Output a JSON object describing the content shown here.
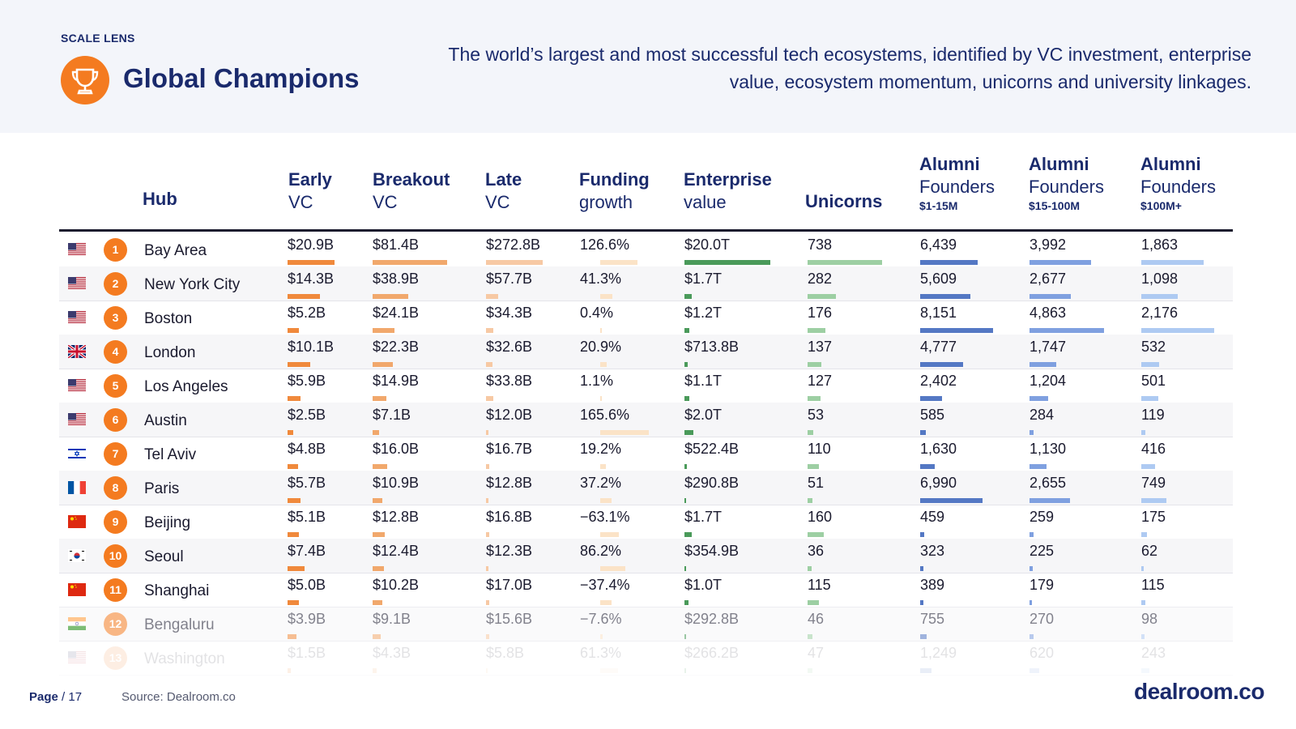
{
  "header": {
    "lens": "SCALE LENS",
    "title": "Global Champions",
    "description": "The world’s largest and most successful tech ecosystems, identified by VC investment, enterprise value, ecosystem momentum, unicorns and university linkages.",
    "icon": "trophy-icon"
  },
  "columns": {
    "hub": "Hub",
    "early": {
      "line1": "Early",
      "line2": "VC"
    },
    "breakout": {
      "line1": "Breakout",
      "line2": "VC"
    },
    "late": {
      "line1": "Late",
      "line2": "VC"
    },
    "funding": {
      "line1": "Funding",
      "line2": "growth"
    },
    "ev": {
      "line1": "Enterprise",
      "line2": "value"
    },
    "unicorns": "Unicorns",
    "alumni_small": {
      "line1": "Alumni",
      "line2": "Founders",
      "line3": "$1-15M"
    },
    "alumni_mid": {
      "line1": "Alumni",
      "line2": "Founders",
      "line3": "$15-100M"
    },
    "alumni_large": {
      "line1": "Alumni",
      "line2": "Founders",
      "line3": "$100M+"
    }
  },
  "colors": {
    "orange": "#f47b20",
    "early_bar": "#f0893c",
    "breakout_bar": "#f1a86c",
    "late_bar": "#f7c9a4",
    "funding_bar": "#fbe3c7",
    "ev_bar": "#4a9a5a",
    "unicorn_bar": "#9dcfa3",
    "alumni_small_bar": "#5478c4",
    "alumni_mid_bar": "#7fa0e0",
    "alumni_large_bar": "#aecaf2",
    "navy": "#1a2a6c"
  },
  "rows": [
    {
      "rank": "1",
      "flag": "us",
      "hub": "Bay Area",
      "early": "$20.9B",
      "early_v": 20.9,
      "breakout": "$81.4B",
      "breakout_v": 81.4,
      "late": "$272.8B",
      "late_v": 272.8,
      "funding": "126.6%",
      "funding_v": 126.6,
      "ev": "$20.0T",
      "ev_v": 20.0,
      "unicorns": "738",
      "unicorns_v": 738,
      "a1": "6,439",
      "a1_v": 6439,
      "a2": "3,992",
      "a2_v": 3992,
      "a3": "1,863",
      "a3_v": 1863
    },
    {
      "rank": "2",
      "flag": "us",
      "hub": "New York City",
      "early": "$14.3B",
      "early_v": 14.3,
      "breakout": "$38.9B",
      "breakout_v": 38.9,
      "late": "$57.7B",
      "late_v": 57.7,
      "funding": "41.3%",
      "funding_v": 41.3,
      "ev": "$1.7T",
      "ev_v": 1.7,
      "unicorns": "282",
      "unicorns_v": 282,
      "a1": "5,609",
      "a1_v": 5609,
      "a2": "2,677",
      "a2_v": 2677,
      "a3": "1,098",
      "a3_v": 1098
    },
    {
      "rank": "3",
      "flag": "us",
      "hub": "Boston",
      "early": "$5.2B",
      "early_v": 5.2,
      "breakout": "$24.1B",
      "breakout_v": 24.1,
      "late": "$34.3B",
      "late_v": 34.3,
      "funding": "0.4%",
      "funding_v": 0.4,
      "ev": "$1.2T",
      "ev_v": 1.2,
      "unicorns": "176",
      "unicorns_v": 176,
      "a1": "8,151",
      "a1_v": 8151,
      "a2": "4,863",
      "a2_v": 4863,
      "a3": "2,176",
      "a3_v": 2176
    },
    {
      "rank": "4",
      "flag": "gb",
      "hub": "London",
      "early": "$10.1B",
      "early_v": 10.1,
      "breakout": "$22.3B",
      "breakout_v": 22.3,
      "late": "$32.6B",
      "late_v": 32.6,
      "funding": "20.9%",
      "funding_v": 20.9,
      "ev": "$713.8B",
      "ev_v": 0.7138,
      "unicorns": "137",
      "unicorns_v": 137,
      "a1": "4,777",
      "a1_v": 4777,
      "a2": "1,747",
      "a2_v": 1747,
      "a3": "532",
      "a3_v": 532
    },
    {
      "rank": "5",
      "flag": "us",
      "hub": "Los Angeles",
      "early": "$5.9B",
      "early_v": 5.9,
      "breakout": "$14.9B",
      "breakout_v": 14.9,
      "late": "$33.8B",
      "late_v": 33.8,
      "funding": "1.1%",
      "funding_v": 1.1,
      "ev": "$1.1T",
      "ev_v": 1.1,
      "unicorns": "127",
      "unicorns_v": 127,
      "a1": "2,402",
      "a1_v": 2402,
      "a2": "1,204",
      "a2_v": 1204,
      "a3": "501",
      "a3_v": 501
    },
    {
      "rank": "6",
      "flag": "us",
      "hub": "Austin",
      "early": "$2.5B",
      "early_v": 2.5,
      "breakout": "$7.1B",
      "breakout_v": 7.1,
      "late": "$12.0B",
      "late_v": 12.0,
      "funding": "165.6%",
      "funding_v": 165.6,
      "ev": "$2.0T",
      "ev_v": 2.0,
      "unicorns": "53",
      "unicorns_v": 53,
      "a1": "585",
      "a1_v": 585,
      "a2": "284",
      "a2_v": 284,
      "a3": "119",
      "a3_v": 119
    },
    {
      "rank": "7",
      "flag": "il",
      "hub": "Tel Aviv",
      "early": "$4.8B",
      "early_v": 4.8,
      "breakout": "$16.0B",
      "breakout_v": 16.0,
      "late": "$16.7B",
      "late_v": 16.7,
      "funding": "19.2%",
      "funding_v": 19.2,
      "ev": "$522.4B",
      "ev_v": 0.5224,
      "unicorns": "110",
      "unicorns_v": 110,
      "a1": "1,630",
      "a1_v": 1630,
      "a2": "1,130",
      "a2_v": 1130,
      "a3": "416",
      "a3_v": 416
    },
    {
      "rank": "8",
      "flag": "fr",
      "hub": "Paris",
      "early": "$5.7B",
      "early_v": 5.7,
      "breakout": "$10.9B",
      "breakout_v": 10.9,
      "late": "$12.8B",
      "late_v": 12.8,
      "funding": "37.2%",
      "funding_v": 37.2,
      "ev": "$290.8B",
      "ev_v": 0.2908,
      "unicorns": "51",
      "unicorns_v": 51,
      "a1": "6,990",
      "a1_v": 6990,
      "a2": "2,655",
      "a2_v": 2655,
      "a3": "749",
      "a3_v": 749
    },
    {
      "rank": "9",
      "flag": "cn",
      "hub": "Beijing",
      "early": "$5.1B",
      "early_v": 5.1,
      "breakout": "$12.8B",
      "breakout_v": 12.8,
      "late": "$16.8B",
      "late_v": 16.8,
      "funding": "−63.1%",
      "funding_v": -63.1,
      "ev": "$1.7T",
      "ev_v": 1.7,
      "unicorns": "160",
      "unicorns_v": 160,
      "a1": "459",
      "a1_v": 459,
      "a2": "259",
      "a2_v": 259,
      "a3": "175",
      "a3_v": 175
    },
    {
      "rank": "10",
      "flag": "kr",
      "hub": "Seoul",
      "early": "$7.4B",
      "early_v": 7.4,
      "breakout": "$12.4B",
      "breakout_v": 12.4,
      "late": "$12.3B",
      "late_v": 12.3,
      "funding": "86.2%",
      "funding_v": 86.2,
      "ev": "$354.9B",
      "ev_v": 0.3549,
      "unicorns": "36",
      "unicorns_v": 36,
      "a1": "323",
      "a1_v": 323,
      "a2": "225",
      "a2_v": 225,
      "a3": "62",
      "a3_v": 62
    },
    {
      "rank": "11",
      "flag": "cn",
      "hub": "Shanghai",
      "early": "$5.0B",
      "early_v": 5.0,
      "breakout": "$10.2B",
      "breakout_v": 10.2,
      "late": "$17.0B",
      "late_v": 17.0,
      "funding": "−37.4%",
      "funding_v": -37.4,
      "ev": "$1.0T",
      "ev_v": 1.0,
      "unicorns": "115",
      "unicorns_v": 115,
      "a1": "389",
      "a1_v": 389,
      "a2": "179",
      "a2_v": 179,
      "a3": "115",
      "a3_v": 115
    },
    {
      "rank": "12",
      "flag": "in",
      "hub": "Bengaluru",
      "early": "$3.9B",
      "early_v": 3.9,
      "breakout": "$9.1B",
      "breakout_v": 9.1,
      "late": "$15.6B",
      "late_v": 15.6,
      "funding": "−7.6%",
      "funding_v": -7.6,
      "ev": "$292.8B",
      "ev_v": 0.2928,
      "unicorns": "46",
      "unicorns_v": 46,
      "a1": "755",
      "a1_v": 755,
      "a2": "270",
      "a2_v": 270,
      "a3": "98",
      "a3_v": 98
    },
    {
      "rank": "13",
      "flag": "us",
      "hub": "Washington",
      "early": "$1.5B",
      "early_v": 1.5,
      "breakout": "$4.3B",
      "breakout_v": 4.3,
      "late": "$5.8B",
      "late_v": 5.8,
      "funding": "61.3%",
      "funding_v": 61.3,
      "ev": "$266.2B",
      "ev_v": 0.2662,
      "unicorns": "47",
      "unicorns_v": 47,
      "a1": "1,249",
      "a1_v": 1249,
      "a2": "620",
      "a2_v": 620,
      "a3": "243",
      "a3_v": 243
    }
  ],
  "footer": {
    "page_label": "Page",
    "page_total": "/ 17",
    "source": "Source: Dealroom.co",
    "logo": "dealroom.co"
  }
}
